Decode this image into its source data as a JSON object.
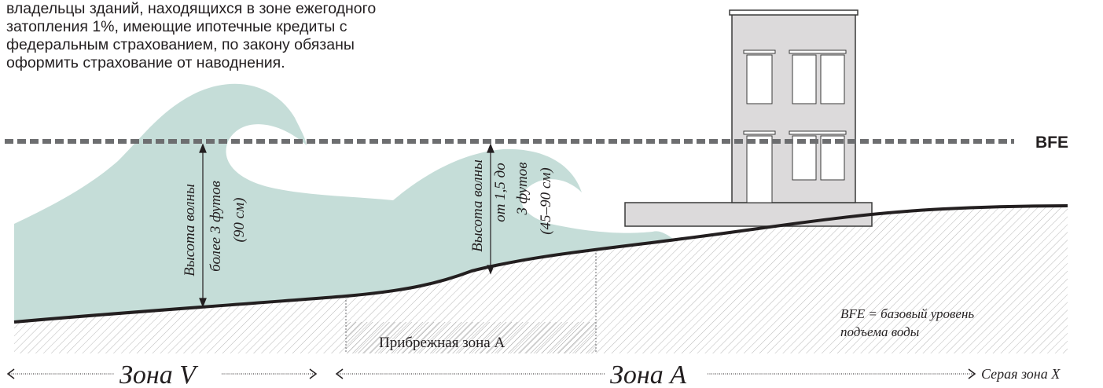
{
  "intro_lines": [
    "владельцы зданий, находящихся в зоне ежегодного",
    "затопления 1%, имеющие ипотечные кредиты с",
    "федеральным страхованием, по закону обязаны",
    "оформить страхование от наводнения."
  ],
  "bfe_label": "BFE",
  "wave_v_label": [
    "Высота волны",
    "более 3 футов",
    "(90 см)"
  ],
  "wave_a_label": [
    "Высота волны",
    "от 1,5 до",
    "3 футов",
    "(45–90 см)"
  ],
  "coastal_zone_a": "Прибрежная зона А",
  "bfe_definition": [
    "BFE = базовый уровень",
    "подъема воды"
  ],
  "zones": {
    "v": "Зона V",
    "a": "Зона А",
    "x": "Серая зона X"
  },
  "colors": {
    "water": "#c5ddd8",
    "ground_line": "#231f20",
    "hatch": "#b8b8b8",
    "bfe_line": "#6d6e70",
    "building": "#dcdadb",
    "building_outline": "#3a3a3a"
  }
}
